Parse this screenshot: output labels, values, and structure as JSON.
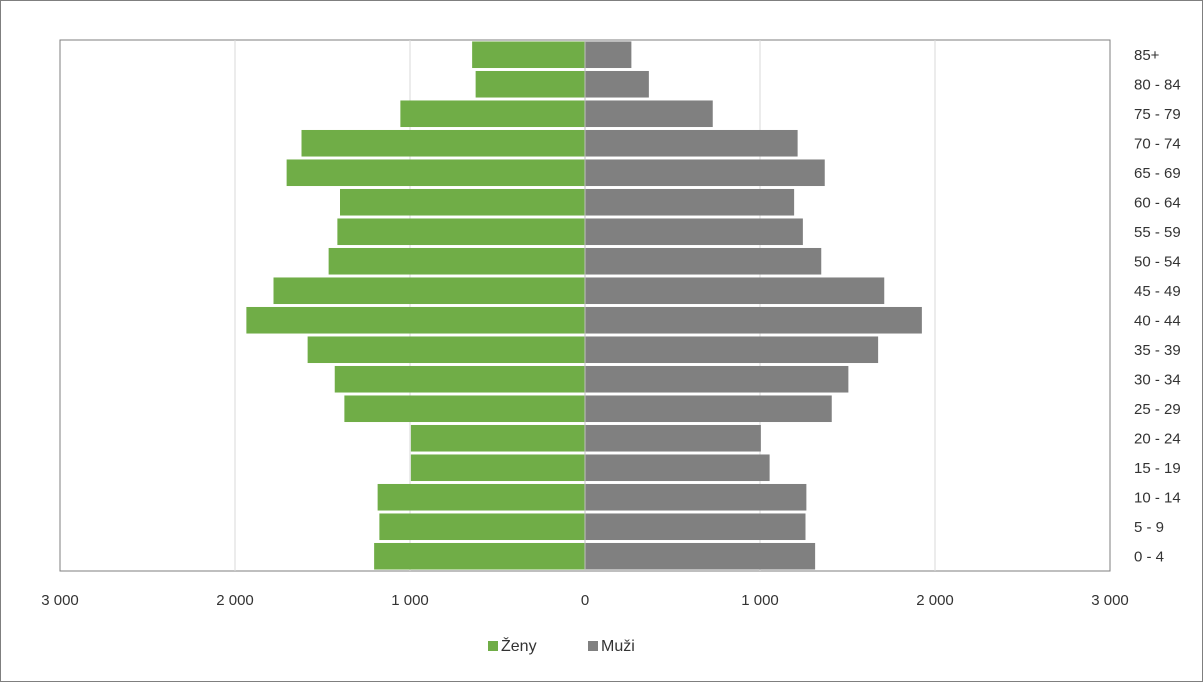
{
  "chart_data": {
    "type": "bar",
    "orientation": "horizontal",
    "title": "",
    "xlabel": "",
    "ylabel": "",
    "categories": [
      "0 - 4",
      "5 - 9",
      "10 - 14",
      "15 - 19",
      "20 - 24",
      "25 - 29",
      "30 - 34",
      "35 - 39",
      "40 - 44",
      "45 - 49",
      "50 - 54",
      "55 - 59",
      "60 - 64",
      "65 - 69",
      "70 - 74",
      "75 - 79",
      "80 - 84",
      "85+"
    ],
    "series": [
      {
        "name": "Ženy",
        "color": "#70ad47",
        "side": "left",
        "values": [
          1205,
          1175,
          1185,
          995,
          995,
          1375,
          1430,
          1585,
          1935,
          1780,
          1465,
          1415,
          1400,
          1705,
          1620,
          1055,
          625,
          645
        ]
      },
      {
        "name": "Muži",
        "color": "#808080",
        "side": "right",
        "values": [
          1315,
          1260,
          1265,
          1055,
          1005,
          1410,
          1505,
          1675,
          1925,
          1710,
          1350,
          1245,
          1195,
          1370,
          1215,
          730,
          365,
          265
        ]
      }
    ],
    "xlim": [
      -3000,
      3000
    ],
    "tick_values": [
      -3000,
      -2000,
      -1000,
      0,
      1000,
      2000,
      3000
    ],
    "tick_labels": [
      "3 000",
      "2 000",
      "1 000",
      "0",
      "1 000",
      "2 000",
      "3 000"
    ],
    "grid": true,
    "legend_position": "bottom",
    "category_axis_position": "right"
  }
}
